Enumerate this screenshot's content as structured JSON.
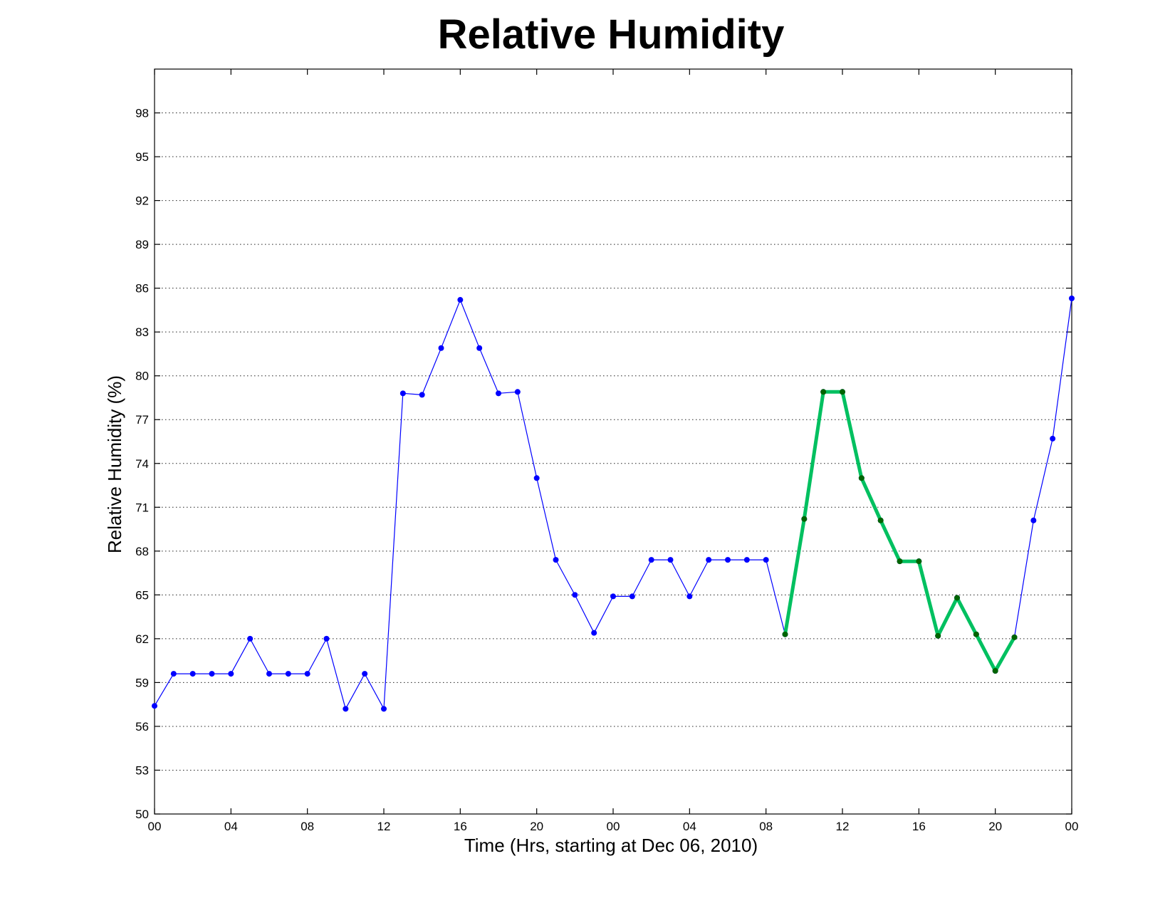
{
  "chart_data": {
    "type": "line",
    "title": "Relative Humidity",
    "xlabel": "Time (Hrs, starting at Dec 06, 2010)",
    "ylabel": "Relative Humidity (%)",
    "xlim": [
      0,
      48
    ],
    "ylim": [
      50,
      101
    ],
    "grid": "y-dotted",
    "x_ticks": [
      0,
      4,
      8,
      12,
      16,
      20,
      24,
      28,
      32,
      36,
      40,
      44,
      48
    ],
    "x_tick_labels": [
      "00",
      "04",
      "08",
      "12",
      "16",
      "20",
      "00",
      "04",
      "08",
      "12",
      "16",
      "20",
      "00"
    ],
    "y_ticks": [
      50,
      53,
      56,
      59,
      62,
      65,
      68,
      71,
      74,
      77,
      80,
      83,
      86,
      89,
      92,
      95,
      98
    ],
    "y_tick_labels": [
      "50",
      "53",
      "56",
      "59",
      "62",
      "65",
      "68",
      "71",
      "74",
      "77",
      "80",
      "83",
      "86",
      "89",
      "92",
      "95",
      "98"
    ],
    "series": [
      {
        "color": "#0000ff",
        "marker_color": "#0000ff",
        "line_width": "thin",
        "x": [
          0,
          1,
          2,
          3,
          4,
          5,
          6,
          7,
          8,
          9,
          10,
          11,
          12,
          13,
          14,
          15,
          16,
          17,
          18,
          19,
          20,
          21,
          22,
          23,
          24,
          25,
          26,
          27,
          28,
          29,
          30,
          31,
          32,
          33,
          34,
          35,
          36,
          37,
          38,
          39,
          40,
          41,
          42,
          43,
          44,
          45,
          46,
          47,
          48
        ],
        "values": [
          57.4,
          59.6,
          59.6,
          59.6,
          59.6,
          62.0,
          59.6,
          59.6,
          59.6,
          62.0,
          57.2,
          59.6,
          57.2,
          78.8,
          78.7,
          81.9,
          85.2,
          81.9,
          78.8,
          78.9,
          73.0,
          67.4,
          65.0,
          62.4,
          64.9,
          64.9,
          67.4,
          67.4,
          64.9,
          67.4,
          67.4,
          67.4,
          67.4,
          62.3,
          70.2,
          78.9,
          78.9,
          73.0,
          70.1,
          67.3,
          67.3,
          62.2,
          64.8,
          62.3,
          59.8,
          62.1,
          70.1,
          75.7,
          85.3
        ]
      },
      {
        "color": "#00c060",
        "marker_color": "#006400",
        "line_width": "thick",
        "x": [
          33,
          34,
          35,
          36,
          37,
          38,
          39,
          40,
          41,
          42,
          43,
          44,
          45
        ],
        "values": [
          62.3,
          70.2,
          78.9,
          78.9,
          73.0,
          70.1,
          67.3,
          67.3,
          62.2,
          64.8,
          62.3,
          59.8,
          62.1
        ]
      }
    ]
  }
}
